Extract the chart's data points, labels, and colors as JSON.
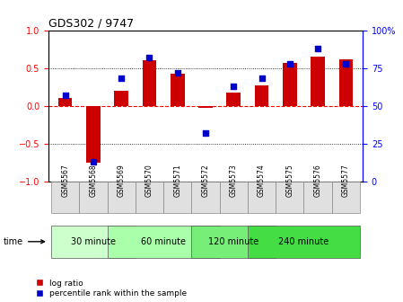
{
  "title": "GDS302 / 9747",
  "samples": [
    "GSM5567",
    "GSM5568",
    "GSM5569",
    "GSM5570",
    "GSM5571",
    "GSM5572",
    "GSM5573",
    "GSM5574",
    "GSM5575",
    "GSM5576",
    "GSM5577"
  ],
  "log_ratio": [
    0.1,
    -0.75,
    0.2,
    0.6,
    0.42,
    -0.03,
    0.17,
    0.27,
    0.57,
    0.65,
    0.62
  ],
  "percentile": [
    57,
    13,
    68,
    82,
    72,
    32,
    63,
    68,
    78,
    88,
    78
  ],
  "groups": [
    {
      "label": "30 minute",
      "start": 0,
      "end": 2,
      "color": "#ccffcc"
    },
    {
      "label": "60 minute",
      "start": 2,
      "end": 5,
      "color": "#aaffaa"
    },
    {
      "label": "120 minute",
      "start": 5,
      "end": 7,
      "color": "#77ee77"
    },
    {
      "label": "240 minute",
      "start": 7,
      "end": 10,
      "color": "#44dd44"
    }
  ],
  "bar_color": "#cc0000",
  "dot_color": "#0000cc",
  "ylim_left": [
    -1,
    1
  ],
  "ylim_right": [
    0,
    100
  ],
  "yticks_left": [
    -1,
    -0.5,
    0,
    0.5,
    1
  ],
  "yticks_right": [
    0,
    25,
    50,
    75,
    100
  ],
  "ylabel_right_labels": [
    "0",
    "25",
    "50",
    "75",
    "100%"
  ],
  "legend_log": "log ratio",
  "legend_pct": "percentile rank within the sample",
  "time_label": "time",
  "bar_width": 0.5
}
